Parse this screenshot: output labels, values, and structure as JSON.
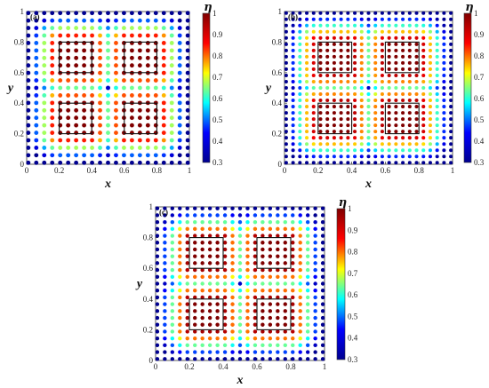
{
  "chart_data": [
    {
      "type": "scatter",
      "panel_label": "(a)",
      "xlabel": "x",
      "ylabel": "y",
      "xlim": [
        0,
        1
      ],
      "ylim": [
        0,
        1
      ],
      "xticks": [
        "0",
        "0.2",
        "0.4",
        "0.6",
        "0.8",
        "1"
      ],
      "yticks": [
        "0",
        "0.2",
        "0.4",
        "0.6",
        "0.8",
        "1"
      ],
      "grid_n": 21,
      "boxes": [
        [
          0.2,
          0.2,
          0.4,
          0.4
        ],
        [
          0.6,
          0.2,
          0.8,
          0.4
        ],
        [
          0.2,
          0.6,
          0.4,
          0.8
        ],
        [
          0.6,
          0.6,
          0.8,
          0.8
        ]
      ],
      "colorbar": {
        "label": "η",
        "min": 0.3,
        "max": 1,
        "ticks": [
          "0.3",
          "0.4",
          "0.5",
          "0.6",
          "0.7",
          "0.8",
          "0.9",
          "1"
        ]
      },
      "color_field": "η=1 inside squares, decaying to ~0.3 at domain edges"
    },
    {
      "type": "scatter",
      "panel_label": "(b)",
      "xlabel": "x",
      "ylabel": "y",
      "xlim": [
        0,
        1
      ],
      "ylim": [
        0,
        1
      ],
      "xticks": [
        "0",
        "0.2",
        "0.4",
        "0.6",
        "0.8",
        "1"
      ],
      "yticks": [
        "0",
        "0.2",
        "0.4",
        "0.6",
        "0.8",
        "1"
      ],
      "grid_n": 25,
      "boxes": [
        [
          0.2,
          0.2,
          0.4,
          0.4
        ],
        [
          0.6,
          0.2,
          0.8,
          0.4
        ],
        [
          0.2,
          0.6,
          0.4,
          0.8
        ],
        [
          0.6,
          0.6,
          0.8,
          0.8
        ]
      ],
      "colorbar": {
        "label": "η",
        "min": 0.3,
        "max": 1,
        "ticks": [
          "0.3",
          "0.4",
          "0.5",
          "0.6",
          "0.7",
          "0.8",
          "0.9",
          "1"
        ]
      },
      "color_field": "η=1 inside squares, decaying to ~0.3 at domain edges"
    },
    {
      "type": "scatter",
      "panel_label": "(c)",
      "xlabel": "x",
      "ylabel": "y",
      "xlim": [
        0,
        1
      ],
      "ylim": [
        0,
        1
      ],
      "xticks": [
        "0",
        "0.2",
        "0.4",
        "0.6",
        "0.8",
        "1"
      ],
      "yticks": [
        "0",
        "0.2",
        "0.4",
        "0.6",
        "0.8",
        "1"
      ],
      "grid_n": 23,
      "boxes": [
        [
          0.2,
          0.2,
          0.4,
          0.4
        ],
        [
          0.6,
          0.2,
          0.8,
          0.4
        ],
        [
          0.2,
          0.6,
          0.4,
          0.8
        ],
        [
          0.6,
          0.6,
          0.8,
          0.8
        ]
      ],
      "colorbar": {
        "label": "η",
        "min": 0.3,
        "max": 1,
        "ticks": [
          "0.3",
          "0.4",
          "0.5",
          "0.6",
          "0.7",
          "0.8",
          "0.9",
          "1"
        ]
      },
      "color_field": "η=1 inside squares, decaying to ~0.3 at domain edges"
    }
  ],
  "colormap": [
    "#00008f",
    "#0000ff",
    "#00ffff",
    "#ffff00",
    "#ff0000",
    "#800000"
  ]
}
